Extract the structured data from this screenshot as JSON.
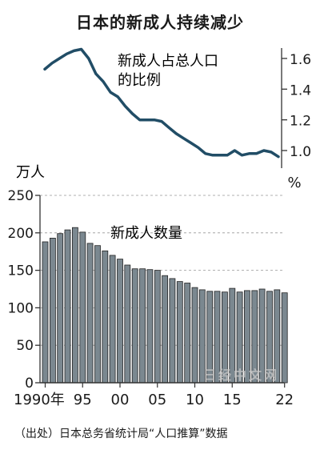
{
  "title": "日本的新成人持续减少",
  "source_note": "（出处）日本总务省统计局“人口推算”数据",
  "watermark": "日经中文网",
  "colors": {
    "line": "#214d66",
    "bar": "#7b8890",
    "bar_edge": "#222222",
    "axis": "#333333",
    "text": "#1a1a1a"
  },
  "chart_data": [
    {
      "type": "line",
      "title": "",
      "label": "新成人占总人口的比例",
      "label_lines": [
        "新成人占总人口",
        "的比例"
      ],
      "ylabel": "%",
      "ylim": [
        0.95,
        1.7
      ],
      "yticks": [
        1.0,
        1.2,
        1.4,
        1.6
      ],
      "ytick_labels": [
        "1.0",
        "1.2",
        "1.4",
        "1.6"
      ],
      "y_axis_side": "right",
      "x": [
        1990,
        1991,
        1992,
        1993,
        1994,
        1995,
        1996,
        1997,
        1998,
        1999,
        2000,
        2001,
        2002,
        2003,
        2004,
        2005,
        2006,
        2007,
        2008,
        2009,
        2010,
        2011,
        2012,
        2013,
        2014,
        2015,
        2016,
        2017,
        2018,
        2019,
        2020,
        2021,
        2022
      ],
      "values": [
        1.53,
        1.57,
        1.6,
        1.63,
        1.65,
        1.66,
        1.6,
        1.5,
        1.45,
        1.38,
        1.35,
        1.29,
        1.24,
        1.2,
        1.2,
        1.2,
        1.19,
        1.15,
        1.11,
        1.08,
        1.05,
        1.02,
        0.98,
        0.97,
        0.97,
        0.97,
        1.0,
        0.97,
        0.98,
        0.98,
        1.0,
        0.99,
        0.96
      ]
    },
    {
      "type": "bar",
      "title": "",
      "label": "新成人数量",
      "ylabel": "万人",
      "ylim": [
        0,
        250
      ],
      "yticks": [
        0,
        50,
        100,
        150,
        200,
        250
      ],
      "ytick_labels": [
        "0",
        "50",
        "100",
        "150",
        "200",
        "250"
      ],
      "categories": [
        1990,
        1991,
        1992,
        1993,
        1994,
        1995,
        1996,
        1997,
        1998,
        1999,
        2000,
        2001,
        2002,
        2003,
        2004,
        2005,
        2006,
        2007,
        2008,
        2009,
        2010,
        2011,
        2012,
        2013,
        2014,
        2015,
        2016,
        2017,
        2018,
        2019,
        2020,
        2021,
        2022
      ],
      "values": [
        188,
        193,
        199,
        204,
        207,
        201,
        186,
        183,
        176,
        170,
        165,
        157,
        152,
        152,
        151,
        150,
        143,
        139,
        135,
        133,
        127,
        124,
        122,
        122,
        121,
        126,
        121,
        123,
        123,
        125,
        122,
        124,
        120
      ],
      "xticks": [
        1990,
        1995,
        2000,
        2005,
        2010,
        2015,
        2022
      ],
      "xtick_labels": [
        "1990年",
        "95",
        "00",
        "05",
        "10",
        "15",
        "22"
      ]
    }
  ]
}
